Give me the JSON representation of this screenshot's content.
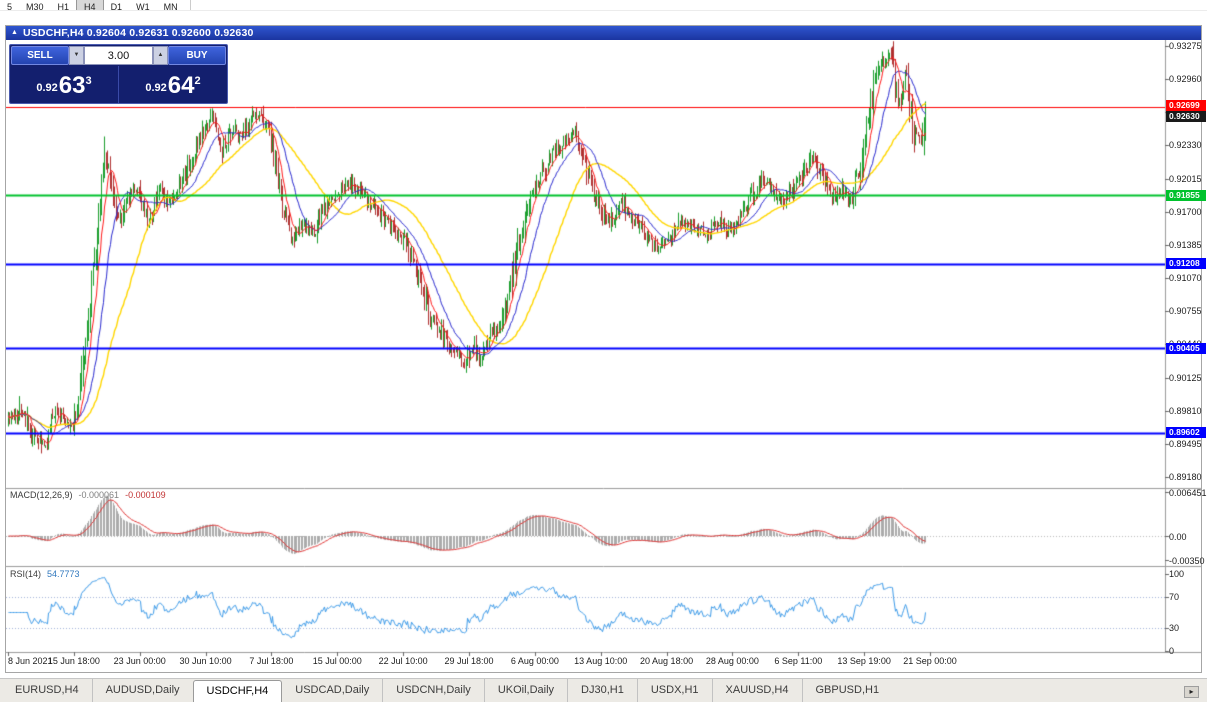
{
  "toolbar": {
    "periods": [
      "5",
      "M30",
      "H1",
      "H4",
      "D1",
      "W1",
      "MN"
    ],
    "active_period": "H4"
  },
  "chart": {
    "window_icon": "▲",
    "title": "USDCHF,H4 0.92604 0.92631 0.92600 0.92630"
  },
  "one_click": {
    "sell_label": "SELL",
    "buy_label": "BUY",
    "volume": "3.00",
    "spin_down_icon": "▼",
    "spin_up_icon": "▲",
    "sell_price": {
      "prefix": "0.92",
      "big": "63",
      "sup": "3"
    },
    "buy_price": {
      "prefix": "0.92",
      "big": "64",
      "sup": "2"
    }
  },
  "tabs": [
    "EURUSD,H4",
    "AUDUSD,Daily",
    "USDCHF,H4",
    "USDCAD,Daily",
    "USDCNH,Daily",
    "UKOil,Daily",
    "DJ30,H1",
    "USDX,H1",
    "XAUUSD,H4",
    "GBPUSD,H1"
  ],
  "active_tab_index": 2,
  "tab_scroll_icon": "▸",
  "chart_data": {
    "type": "candlestick",
    "symbol": "USDCHF",
    "timeframe": "H4",
    "num_candles": 640,
    "up_color": "#1a9e2c",
    "down_color": "#b03030",
    "x_labels": [
      "8 Jun 2021",
      "15 Jun 18:00",
      "23 Jun 00:00",
      "30 Jun 10:00",
      "7 Jul 18:00",
      "15 Jul 00:00",
      "22 Jul 10:00",
      "29 Jul 18:00",
      "6 Aug 00:00",
      "13 Aug 10:00",
      "20 Aug 18:00",
      "28 Aug 00:00",
      "6 Sep 11:00",
      "13 Sep 19:00",
      "21 Sep 00:00"
    ],
    "y_ticks": [
      "0.93275",
      "0.92960",
      "0.92645",
      "0.92330",
      "0.92015",
      "0.91700",
      "0.91385",
      "0.91070",
      "0.90755",
      "0.90440",
      "0.90125",
      "0.89810",
      "0.89495",
      "0.89180"
    ],
    "price_path_note": "keypoints [x_fraction_of_candle_range, price] tracing the close path visible in the chart",
    "price_path": [
      [
        0.0,
        0.8972
      ],
      [
        0.013,
        0.8982
      ],
      [
        0.026,
        0.8958
      ],
      [
        0.04,
        0.8945
      ],
      [
        0.051,
        0.8985
      ],
      [
        0.059,
        0.8972
      ],
      [
        0.068,
        0.896
      ],
      [
        0.076,
        0.8988
      ],
      [
        0.087,
        0.9065
      ],
      [
        0.097,
        0.916
      ],
      [
        0.106,
        0.9218
      ],
      [
        0.113,
        0.9192
      ],
      [
        0.122,
        0.916
      ],
      [
        0.131,
        0.9185
      ],
      [
        0.14,
        0.9192
      ],
      [
        0.153,
        0.916
      ],
      [
        0.164,
        0.9188
      ],
      [
        0.174,
        0.918
      ],
      [
        0.188,
        0.9196
      ],
      [
        0.201,
        0.9225
      ],
      [
        0.213,
        0.925
      ],
      [
        0.222,
        0.9265
      ],
      [
        0.233,
        0.9232
      ],
      [
        0.244,
        0.9248
      ],
      [
        0.255,
        0.9242
      ],
      [
        0.266,
        0.9258
      ],
      [
        0.277,
        0.9262
      ],
      [
        0.288,
        0.9235
      ],
      [
        0.299,
        0.9175
      ],
      [
        0.31,
        0.9138
      ],
      [
        0.321,
        0.9158
      ],
      [
        0.334,
        0.915
      ],
      [
        0.347,
        0.9178
      ],
      [
        0.361,
        0.9188
      ],
      [
        0.375,
        0.9198
      ],
      [
        0.39,
        0.9182
      ],
      [
        0.406,
        0.9165
      ],
      [
        0.42,
        0.9155
      ],
      [
        0.433,
        0.9142
      ],
      [
        0.447,
        0.9108
      ],
      [
        0.46,
        0.9072
      ],
      [
        0.473,
        0.9052
      ],
      [
        0.486,
        0.9038
      ],
      [
        0.497,
        0.9028
      ],
      [
        0.506,
        0.9044
      ],
      [
        0.515,
        0.903
      ],
      [
        0.526,
        0.9052
      ],
      [
        0.537,
        0.906
      ],
      [
        0.547,
        0.9095
      ],
      [
        0.558,
        0.9148
      ],
      [
        0.569,
        0.918
      ],
      [
        0.582,
        0.9205
      ],
      [
        0.595,
        0.9226
      ],
      [
        0.608,
        0.9238
      ],
      [
        0.618,
        0.9245
      ],
      [
        0.63,
        0.9212
      ],
      [
        0.643,
        0.9175
      ],
      [
        0.656,
        0.9158
      ],
      [
        0.667,
        0.9182
      ],
      [
        0.68,
        0.9166
      ],
      [
        0.695,
        0.9148
      ],
      [
        0.709,
        0.9132
      ],
      [
        0.722,
        0.9148
      ],
      [
        0.735,
        0.9162
      ],
      [
        0.748,
        0.9155
      ],
      [
        0.761,
        0.9148
      ],
      [
        0.774,
        0.9162
      ],
      [
        0.787,
        0.9152
      ],
      [
        0.8,
        0.9168
      ],
      [
        0.813,
        0.9188
      ],
      [
        0.824,
        0.9202
      ],
      [
        0.835,
        0.9186
      ],
      [
        0.846,
        0.9178
      ],
      [
        0.857,
        0.9192
      ],
      [
        0.868,
        0.9208
      ],
      [
        0.879,
        0.9222
      ],
      [
        0.89,
        0.9198
      ],
      [
        0.901,
        0.9185
      ],
      [
        0.907,
        0.9192
      ],
      [
        0.918,
        0.918
      ],
      [
        0.927,
        0.9205
      ],
      [
        0.936,
        0.9252
      ],
      [
        0.944,
        0.929
      ],
      [
        0.953,
        0.9312
      ],
      [
        0.962,
        0.9325
      ],
      [
        0.971,
        0.9272
      ],
      [
        0.979,
        0.9298
      ],
      [
        0.988,
        0.9245
      ],
      [
        0.995,
        0.9232
      ],
      [
        1.0,
        0.9263
      ]
    ],
    "last_close": 0.9263,
    "moving_averages": [
      {
        "period": 8,
        "color": "#ff1a1a"
      },
      {
        "period": 20,
        "color": "#2a2ad0"
      },
      {
        "period": 48,
        "color": "#ffd700"
      }
    ],
    "hlines": [
      {
        "price": 0.92699,
        "label": "0.92699",
        "color": "#ff0000",
        "width": 1
      },
      {
        "price": 0.91855,
        "label": "0.91855",
        "color": "#00c22d",
        "width": 2
      },
      {
        "price": 0.91208,
        "label": "0.91208",
        "color": "#0000ff",
        "width": 2
      },
      {
        "price": 0.90405,
        "label": "0.90405",
        "color": "#0000ff",
        "width": 2
      },
      {
        "price": 0.89602,
        "label": "0.89602",
        "color": "#0000ff",
        "width": 2
      }
    ],
    "current_price": {
      "price": 0.9263,
      "label": "0.92630",
      "color": "#1a1a1a"
    },
    "macd": {
      "name": "MACD(12,26,9)",
      "value_main": "-0.000061",
      "value_signal": "-0.000109",
      "fast": 12,
      "slow": 26,
      "signal": 9,
      "hist_color": "#ababab",
      "signal_color": "#e03030",
      "ticks": [
        {
          "value": 0.006451,
          "label": "0.006451"
        },
        {
          "value": 0,
          "label": "0.00"
        },
        {
          "value": -0.0035,
          "label": "-0.00350"
        }
      ]
    },
    "rsi": {
      "name": "RSI(14)",
      "value": "54.7773",
      "period": 14,
      "color": "#3d9be9",
      "levels": [
        70,
        30
      ],
      "ticks": [
        {
          "value": 100,
          "label": "100"
        },
        {
          "value": 70,
          "label": "70"
        },
        {
          "value": 30,
          "label": "30"
        },
        {
          "value": 0,
          "label": "0"
        }
      ]
    }
  }
}
